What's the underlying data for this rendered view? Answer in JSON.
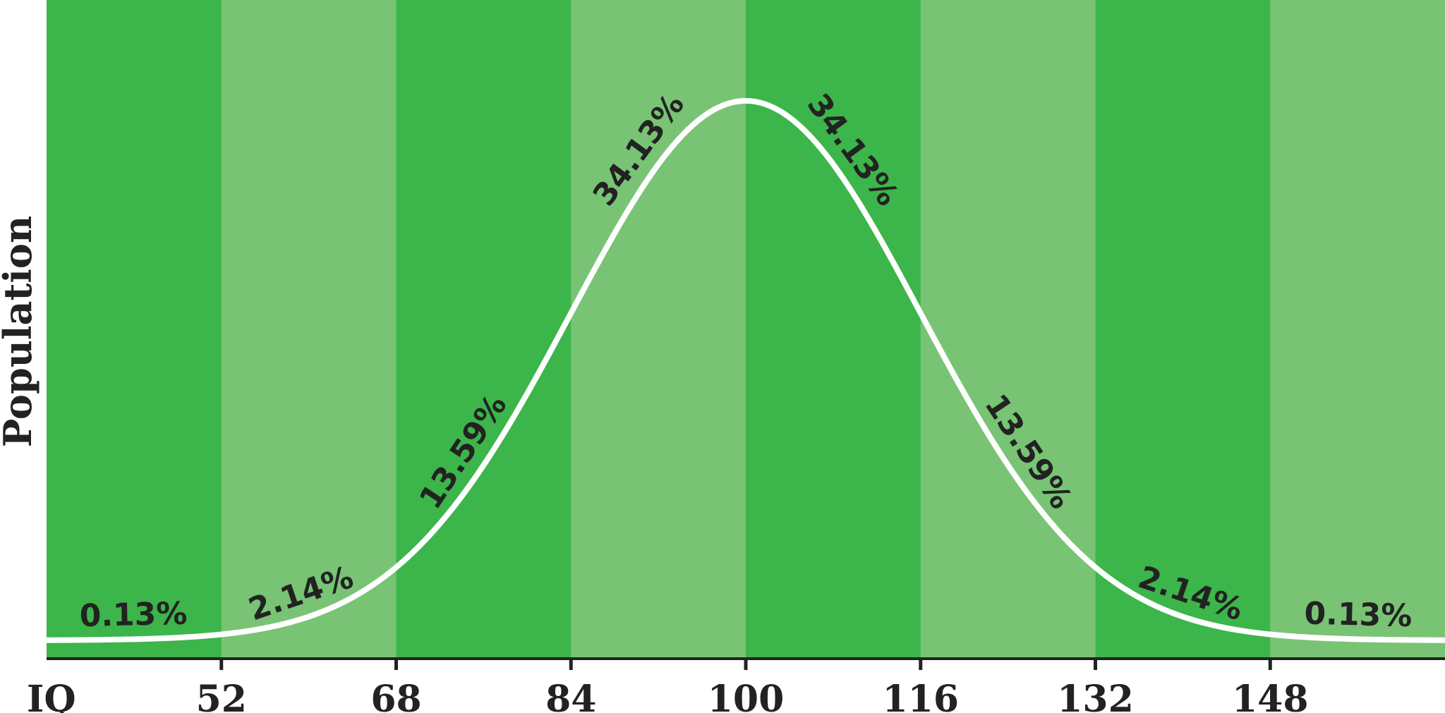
{
  "chart_data": {
    "type": "area",
    "ylabel": "Population",
    "xlabel": "IQ",
    "x_range": [
      36,
      164
    ],
    "tick_values": [
      52,
      68,
      84,
      100,
      116,
      132,
      148
    ],
    "tick_labels": [
      "52",
      "68",
      "84",
      "100",
      "116",
      "132",
      "148"
    ],
    "distribution": {
      "mean": 100,
      "sd": 16
    },
    "bands": [
      {
        "from": 36,
        "to": 52,
        "percent": "0.13%"
      },
      {
        "from": 52,
        "to": 68,
        "percent": "2.14%"
      },
      {
        "from": 68,
        "to": 84,
        "percent": "13.59%"
      },
      {
        "from": 84,
        "to": 100,
        "percent": "34.13%"
      },
      {
        "from": 100,
        "to": 116,
        "percent": "34.13%"
      },
      {
        "from": 116,
        "to": 132,
        "percent": "13.59%"
      },
      {
        "from": 132,
        "to": 148,
        "percent": "2.14%"
      },
      {
        "from": 148,
        "to": 164,
        "percent": "0.13%"
      }
    ],
    "colors": {
      "band_dark": "#3cb54a",
      "band_light": "#78c474",
      "curve": "#ffffff",
      "text": "#222222",
      "axis": "#222222"
    },
    "grid": false,
    "legend": "none"
  }
}
